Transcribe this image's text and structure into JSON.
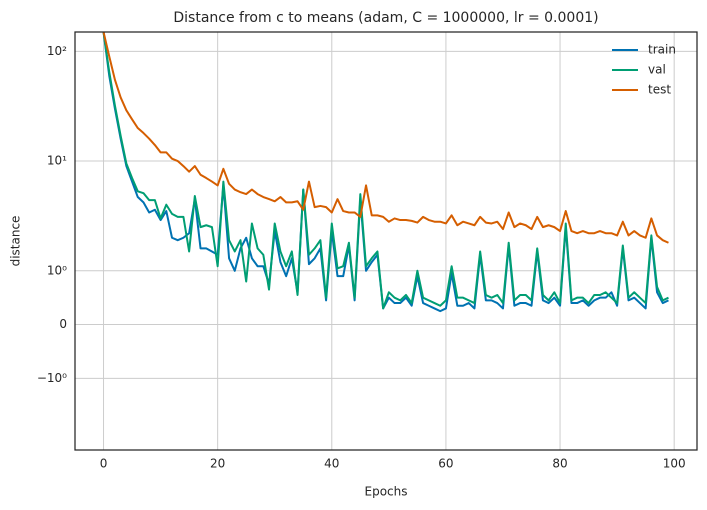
{
  "chart_data": {
    "type": "line",
    "title": "Distance from c to means (adam, C = 1000000, lr = 0.0001)",
    "xlabel": "Epochs",
    "ylabel": "distance",
    "yscale": "symlog",
    "linthresh": 1,
    "grid": true,
    "legend": "upper right",
    "xlim": [
      -5,
      104
    ],
    "xticks": [
      0,
      20,
      40,
      60,
      80,
      100
    ],
    "ylim": [
      -4.5,
      150
    ],
    "yticks": [
      {
        "value": -1,
        "label": "−10⁰"
      },
      0,
      {
        "value": 1,
        "label": "10⁰"
      },
      {
        "value": 10,
        "label": "10¹"
      },
      {
        "value": 100,
        "label": "10²"
      }
    ],
    "x": [
      0,
      1,
      2,
      3,
      4,
      5,
      6,
      7,
      8,
      9,
      10,
      11,
      12,
      13,
      14,
      15,
      16,
      17,
      18,
      19,
      20,
      21,
      22,
      23,
      24,
      25,
      26,
      27,
      28,
      29,
      30,
      31,
      32,
      33,
      34,
      35,
      36,
      37,
      38,
      39,
      40,
      41,
      42,
      43,
      44,
      45,
      46,
      47,
      48,
      49,
      50,
      51,
      52,
      53,
      54,
      55,
      56,
      57,
      58,
      59,
      60,
      61,
      62,
      63,
      64,
      65,
      66,
      67,
      68,
      69,
      70,
      71,
      72,
      73,
      74,
      75,
      76,
      77,
      78,
      79,
      80,
      81,
      82,
      83,
      84,
      85,
      86,
      87,
      88,
      89,
      90,
      91,
      92,
      93,
      94,
      95,
      96,
      97,
      98,
      99
    ],
    "series": [
      {
        "name": "train",
        "color": "#0072b2",
        "values": [
          150,
          60,
          30,
          16,
          9,
          6.5,
          4.7,
          4.2,
          3.4,
          3.6,
          2.9,
          3.5,
          2.0,
          1.9,
          2.0,
          2.2,
          4.5,
          1.6,
          1.6,
          1.5,
          1.4,
          6.0,
          1.3,
          1.0,
          1.6,
          2.0,
          1.3,
          1.1,
          1.1,
          0.75,
          2.3,
          1.2,
          0.9,
          1.3,
          0.6,
          5.5,
          1.15,
          1.3,
          1.6,
          0.45,
          2.3,
          0.9,
          0.9,
          1.7,
          0.45,
          4.5,
          1.0,
          1.2,
          1.4,
          0.3,
          0.5,
          0.4,
          0.4,
          0.5,
          0.35,
          0.9,
          0.4,
          0.35,
          0.3,
          0.25,
          0.3,
          0.95,
          0.35,
          0.35,
          0.4,
          0.3,
          1.4,
          0.45,
          0.45,
          0.4,
          0.3,
          1.7,
          0.35,
          0.4,
          0.4,
          0.35,
          1.5,
          0.45,
          0.4,
          0.5,
          0.35,
          2.5,
          0.4,
          0.4,
          0.45,
          0.35,
          0.45,
          0.5,
          0.5,
          0.6,
          0.35,
          1.6,
          0.45,
          0.5,
          0.4,
          0.3,
          2.0,
          0.6,
          0.4,
          0.45
        ]
      },
      {
        "name": "val",
        "color": "#009e73",
        "values": [
          150,
          65,
          32,
          17,
          9.5,
          7,
          5.3,
          5.1,
          4.4,
          4.4,
          3.0,
          4.0,
          3.3,
          3.1,
          3.1,
          1.5,
          4.8,
          2.5,
          2.6,
          2.5,
          1.1,
          6.5,
          1.9,
          1.5,
          1.9,
          0.8,
          2.7,
          1.6,
          1.4,
          0.65,
          2.7,
          1.5,
          1.1,
          1.5,
          0.55,
          5.5,
          1.4,
          1.6,
          1.9,
          0.5,
          2.7,
          1.05,
          1.1,
          1.8,
          0.5,
          5.0,
          1.1,
          1.3,
          1.5,
          0.3,
          0.6,
          0.5,
          0.45,
          0.55,
          0.4,
          1.0,
          0.5,
          0.45,
          0.4,
          0.35,
          0.45,
          1.1,
          0.5,
          0.5,
          0.45,
          0.4,
          1.5,
          0.55,
          0.5,
          0.55,
          0.4,
          1.8,
          0.45,
          0.55,
          0.55,
          0.45,
          1.6,
          0.55,
          0.45,
          0.6,
          0.4,
          2.7,
          0.45,
          0.5,
          0.5,
          0.4,
          0.55,
          0.55,
          0.6,
          0.5,
          0.4,
          1.7,
          0.5,
          0.6,
          0.5,
          0.4,
          2.1,
          0.7,
          0.45,
          0.5
        ]
      },
      {
        "name": "test",
        "color": "#d55e00",
        "values": [
          150,
          90,
          55,
          38,
          29,
          24,
          20,
          18,
          16,
          14,
          12,
          12,
          10.5,
          10,
          9,
          8,
          9,
          7.5,
          7,
          6.5,
          6,
          8.5,
          6.2,
          5.5,
          5.2,
          5,
          5.5,
          5,
          4.7,
          4.5,
          4.3,
          4.7,
          4.2,
          4.2,
          4.3,
          3.6,
          6.5,
          3.8,
          3.9,
          3.8,
          3.4,
          4.5,
          3.5,
          3.4,
          3.4,
          3.1,
          6.0,
          3.2,
          3.2,
          3.1,
          2.8,
          3.0,
          2.9,
          2.9,
          2.85,
          2.75,
          3.1,
          2.9,
          2.8,
          2.8,
          2.7,
          3.2,
          2.6,
          2.8,
          2.7,
          2.6,
          3.1,
          2.75,
          2.7,
          2.8,
          2.4,
          3.4,
          2.5,
          2.7,
          2.6,
          2.4,
          3.1,
          2.5,
          2.6,
          2.5,
          2.3,
          3.5,
          2.3,
          2.2,
          2.3,
          2.2,
          2.2,
          2.3,
          2.2,
          2.2,
          2.1,
          2.8,
          2.1,
          2.3,
          2.1,
          2.0,
          3.0,
          2.1,
          1.9,
          1.8
        ]
      }
    ]
  }
}
